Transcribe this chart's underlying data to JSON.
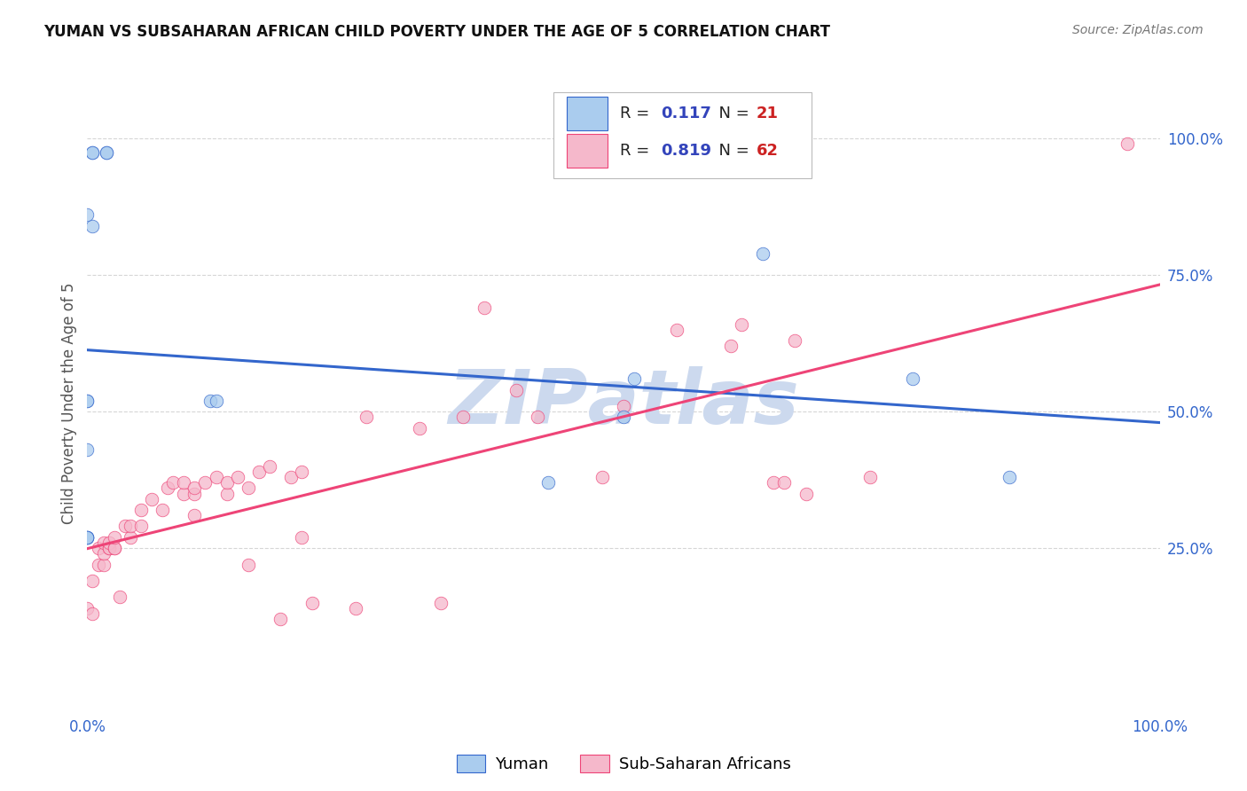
{
  "title": "YUMAN VS SUBSAHARAN AFRICAN CHILD POVERTY UNDER THE AGE OF 5 CORRELATION CHART",
  "source": "Source: ZipAtlas.com",
  "ylabel": "Child Poverty Under the Age of 5",
  "background_color": "#ffffff",
  "grid_color": "#cccccc",
  "watermark_color": "#ccd9ee",
  "yuman_scatter_color": "#aaccee",
  "subsaharan_scatter_color": "#f5b8cb",
  "yuman_line_color": "#3366cc",
  "subsaharan_line_color": "#ee4477",
  "tick_color": "#3366cc",
  "R_label_color": "#3344bb",
  "N_label_color": "#cc2222",
  "yuman_R": "0.117",
  "yuman_N": "21",
  "subsaharan_R": "0.819",
  "subsaharan_N": "62",
  "yuman_label": "Yuman",
  "subsaharan_label": "Sub-Saharan Africans",
  "yuman_points_x": [
    0.005,
    0.005,
    0.018,
    0.018,
    0.005,
    0.0,
    0.0,
    0.0,
    0.0,
    0.0,
    0.0,
    0.0,
    0.0,
    0.115,
    0.12,
    0.43,
    0.5,
    0.51,
    0.63,
    0.77,
    0.86
  ],
  "yuman_points_y": [
    0.975,
    0.975,
    0.975,
    0.975,
    0.84,
    0.86,
    0.52,
    0.52,
    0.43,
    0.27,
    0.27,
    0.27,
    0.27,
    0.52,
    0.52,
    0.37,
    0.49,
    0.56,
    0.79,
    0.56,
    0.38
  ],
  "subsaharan_points_x": [
    0.0,
    0.005,
    0.005,
    0.01,
    0.01,
    0.015,
    0.015,
    0.015,
    0.02,
    0.02,
    0.02,
    0.025,
    0.025,
    0.025,
    0.03,
    0.035,
    0.04,
    0.04,
    0.05,
    0.05,
    0.06,
    0.07,
    0.075,
    0.08,
    0.09,
    0.09,
    0.1,
    0.1,
    0.1,
    0.11,
    0.12,
    0.13,
    0.13,
    0.14,
    0.15,
    0.15,
    0.16,
    0.17,
    0.18,
    0.19,
    0.2,
    0.2,
    0.21,
    0.25,
    0.26,
    0.31,
    0.33,
    0.35,
    0.37,
    0.4,
    0.42,
    0.48,
    0.5,
    0.55,
    0.6,
    0.61,
    0.64,
    0.65,
    0.66,
    0.67,
    0.73,
    0.97
  ],
  "subsaharan_points_y": [
    0.14,
    0.13,
    0.19,
    0.22,
    0.25,
    0.22,
    0.24,
    0.26,
    0.25,
    0.25,
    0.26,
    0.25,
    0.25,
    0.27,
    0.16,
    0.29,
    0.27,
    0.29,
    0.29,
    0.32,
    0.34,
    0.32,
    0.36,
    0.37,
    0.35,
    0.37,
    0.31,
    0.35,
    0.36,
    0.37,
    0.38,
    0.35,
    0.37,
    0.38,
    0.22,
    0.36,
    0.39,
    0.4,
    0.12,
    0.38,
    0.27,
    0.39,
    0.15,
    0.14,
    0.49,
    0.47,
    0.15,
    0.49,
    0.69,
    0.54,
    0.49,
    0.38,
    0.51,
    0.65,
    0.62,
    0.66,
    0.37,
    0.37,
    0.63,
    0.35,
    0.38,
    0.99
  ],
  "xlim": [
    0.0,
    1.0
  ],
  "ylim": [
    -0.05,
    1.08
  ],
  "yticks": [
    0.25,
    0.5,
    0.75,
    1.0
  ],
  "ytick_labels": [
    "25.0%",
    "50.0%",
    "75.0%",
    "100.0%"
  ],
  "xtick_labels": [
    "0.0%",
    "100.0%"
  ],
  "marker_size": 110,
  "marker_alpha": 0.75,
  "line_width": 2.2
}
